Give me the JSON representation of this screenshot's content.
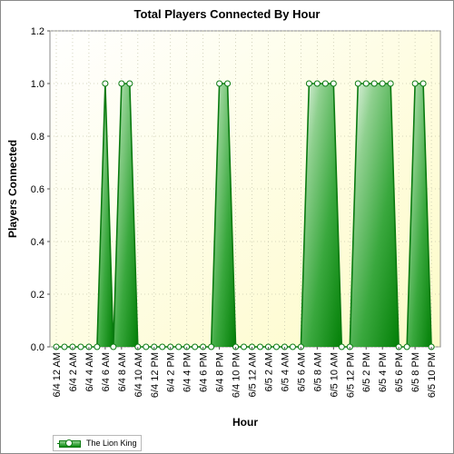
{
  "chart_data": {
    "type": "area",
    "title": "Total Players Connected By Hour",
    "xlabel": "Hour",
    "ylabel": "Players Connected",
    "ylim": [
      0,
      1.2
    ],
    "yticks": [
      "0.0",
      "0.2",
      "0.4",
      "0.6",
      "0.8",
      "1.0",
      "1.2"
    ],
    "grid": true,
    "legend_position": "bottom-left",
    "x": [
      "6/4 12 AM",
      "6/4 1 AM",
      "6/4 2 AM",
      "6/4 3 AM",
      "6/4 4 AM",
      "6/4 5 AM",
      "6/4 6 AM",
      "6/4 7 AM",
      "6/4 8 AM",
      "6/4 9 AM",
      "6/4 10 AM",
      "6/4 11 AM",
      "6/4 12 PM",
      "6/4 1 PM",
      "6/4 2 PM",
      "6/4 3 PM",
      "6/4 4 PM",
      "6/4 5 PM",
      "6/4 6 PM",
      "6/4 7 PM",
      "6/4 8 PM",
      "6/4 9 PM",
      "6/4 10 PM",
      "6/4 11 PM",
      "6/5 12 AM",
      "6/5 1 AM",
      "6/5 2 AM",
      "6/5 3 AM",
      "6/5 4 AM",
      "6/5 5 AM",
      "6/5 6 AM",
      "6/5 7 AM",
      "6/5 8 AM",
      "6/5 9 AM",
      "6/5 10 AM",
      "6/5 11 AM",
      "6/5 12 PM",
      "6/5 1 PM",
      "6/5 2 PM",
      "6/5 3 PM",
      "6/5 4 PM",
      "6/5 5 PM",
      "6/5 6 PM",
      "6/5 7 PM",
      "6/5 8 PM",
      "6/5 9 PM",
      "6/5 10 PM"
    ],
    "xtick_labels": [
      "6/4 12 AM",
      "6/4 2 AM",
      "6/4 4 AM",
      "6/4 6 AM",
      "6/4 8 AM",
      "6/4 10 AM",
      "6/4 12 PM",
      "6/4 2 PM",
      "6/4 4 PM",
      "6/4 6 PM",
      "6/4 8 PM",
      "6/4 10 PM",
      "6/5 12 AM",
      "6/5 2 AM",
      "6/5 4 AM",
      "6/5 6 AM",
      "6/5 8 AM",
      "6/5 10 AM",
      "6/5 12 PM",
      "6/5 2 PM",
      "6/5 4 PM",
      "6/5 6 PM",
      "6/5 8 PM",
      "6/5 10 PM"
    ],
    "series": [
      {
        "name": "The Lion King",
        "color": "#0a8a10",
        "values": [
          0,
          0,
          0,
          0,
          0,
          0,
          1,
          0,
          1,
          1,
          0,
          0,
          0,
          0,
          0,
          0,
          0,
          0,
          0,
          0,
          1,
          1,
          0,
          0,
          0,
          0,
          0,
          0,
          0,
          0,
          0,
          1,
          1,
          1,
          1,
          0,
          0,
          1,
          1,
          1,
          1,
          1,
          0,
          0,
          1,
          1,
          0
        ]
      }
    ]
  },
  "legend": {
    "label": "The Lion King"
  }
}
